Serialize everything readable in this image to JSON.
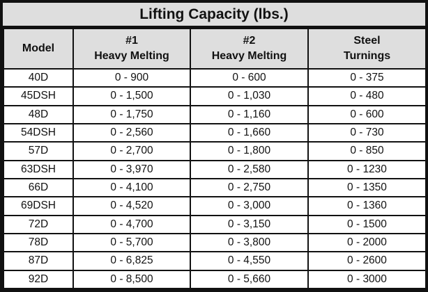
{
  "title": "Lifting Capacity (lbs.)",
  "columns": [
    {
      "lines": [
        "Model"
      ]
    },
    {
      "lines": [
        "#1",
        "Heavy Melting"
      ]
    },
    {
      "lines": [
        "#2",
        "Heavy Melting"
      ]
    },
    {
      "lines": [
        "Steel",
        "Turnings"
      ]
    }
  ],
  "rows": [
    [
      "40D",
      "0 - 900",
      "0 - 600",
      "0 - 375"
    ],
    [
      "45DSH",
      "0 - 1,500",
      "0 - 1,030",
      "0 - 480"
    ],
    [
      "48D",
      "0 - 1,750",
      "0 - 1,160",
      "0 - 600"
    ],
    [
      "54DSH",
      "0 - 2,560",
      "0 - 1,660",
      "0 - 730"
    ],
    [
      "57D",
      "0 - 2,700",
      "0 - 1,800",
      "0 - 850"
    ],
    [
      "63DSH",
      "0 - 3,970",
      "0 - 2,580",
      "0 - 1230"
    ],
    [
      "66D",
      "0 - 4,100",
      "0 - 2,750",
      "0 - 1350"
    ],
    [
      "69DSH",
      "0 - 4,520",
      "0 - 3,000",
      "0 - 1360"
    ],
    [
      "72D",
      "0 - 4,700",
      "0 - 3,150",
      "0 - 1500"
    ],
    [
      "78D",
      "0 - 5,700",
      "0 - 3,800",
      "0 - 2000"
    ],
    [
      "87D",
      "0 - 6,825",
      "0 - 4,550",
      "0 - 2600"
    ],
    [
      "92D",
      "0 - 8,500",
      "0 - 5,660",
      "0 - 3000"
    ]
  ]
}
